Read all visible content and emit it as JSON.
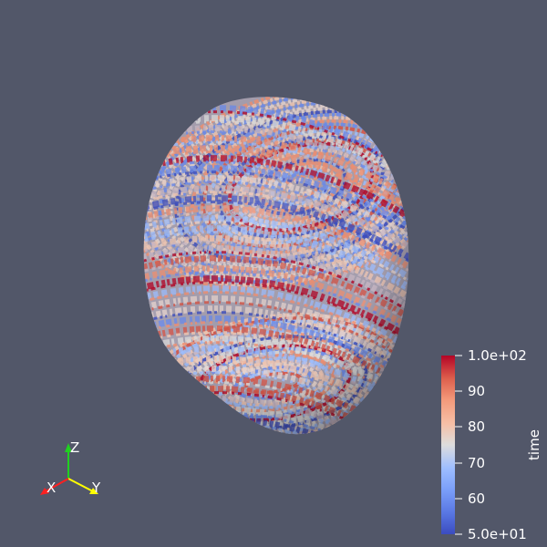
{
  "colorbar": {
    "title": "time",
    "max_label": "1.0e+02",
    "min_label": "5.0e+01",
    "ticks": [
      {
        "label": "90",
        "value": 90
      },
      {
        "label": "80",
        "value": 80
      },
      {
        "label": "70",
        "value": 70
      },
      {
        "label": "60",
        "value": 60
      }
    ],
    "range": [
      50,
      100
    ],
    "colors": {
      "low": "#3b4cc0",
      "mid": "#dddddd",
      "high": "#b40426"
    }
  },
  "axes": {
    "x_label": "X",
    "y_label": "Y",
    "z_label": "Z",
    "x_color": "#ff2020",
    "y_color": "#ffff00",
    "z_color": "#20d020"
  },
  "background_color": "#525769",
  "object": {
    "type": "3D surface colored by time"
  }
}
